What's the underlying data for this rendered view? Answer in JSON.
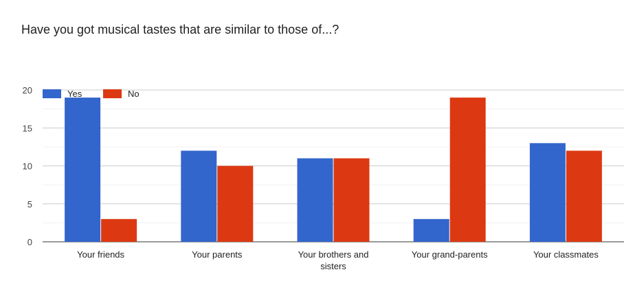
{
  "chart_data": {
    "type": "bar",
    "title": "Have you got musical tastes that are similar to those of...?",
    "categories": [
      "Your friends",
      "Your parents",
      "Your brothers and sisters",
      "Your grand-parents",
      "Your classmates"
    ],
    "series": [
      {
        "name": "Yes",
        "color": "#3366cc",
        "values": [
          19,
          12,
          11,
          3,
          13
        ]
      },
      {
        "name": "No",
        "color": "#dc3912",
        "values": [
          3,
          10,
          11,
          19,
          12
        ]
      }
    ],
    "yticks": [
      0,
      5,
      10,
      15,
      20
    ],
    "ylim": [
      0,
      20
    ],
    "xlabel": "",
    "ylabel": "",
    "legend": "top-left",
    "grid": true
  }
}
